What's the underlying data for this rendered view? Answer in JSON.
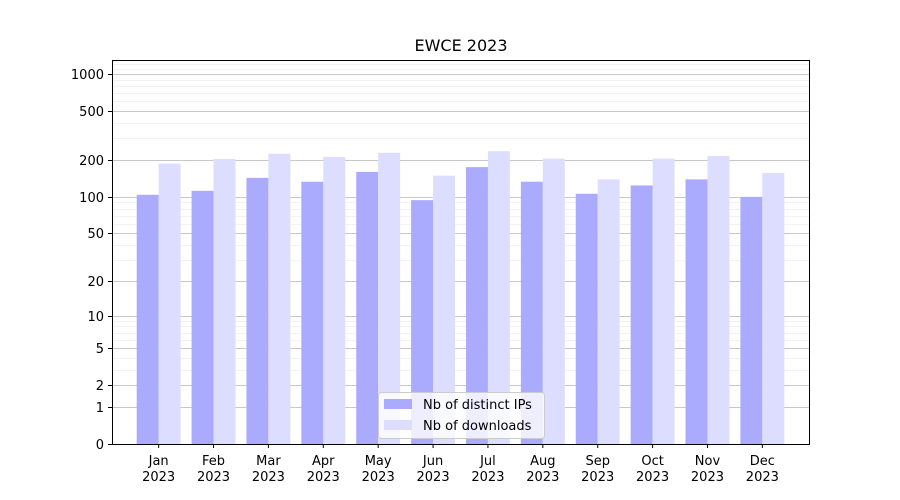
{
  "chart_data": {
    "type": "bar",
    "title": "EWCE 2023",
    "xlabel": "",
    "ylabel": "",
    "y_scale": "symlog",
    "ylim": [
      0,
      1300
    ],
    "y_ticks": [
      0,
      1,
      2,
      5,
      10,
      20,
      50,
      100,
      200,
      500,
      1000
    ],
    "y_tick_labels": [
      "0",
      "1",
      "2",
      "5",
      "10",
      "20",
      "50",
      "100",
      "200",
      "500",
      "1000"
    ],
    "grid": true,
    "legend_position": "bottom-center",
    "categories": [
      {
        "month": "Jan",
        "year": "2023"
      },
      {
        "month": "Feb",
        "year": "2023"
      },
      {
        "month": "Mar",
        "year": "2023"
      },
      {
        "month": "Apr",
        "year": "2023"
      },
      {
        "month": "May",
        "year": "2023"
      },
      {
        "month": "Jun",
        "year": "2023"
      },
      {
        "month": "Jul",
        "year": "2023"
      },
      {
        "month": "Aug",
        "year": "2023"
      },
      {
        "month": "Sep",
        "year": "2023"
      },
      {
        "month": "Oct",
        "year": "2023"
      },
      {
        "month": "Nov",
        "year": "2023"
      },
      {
        "month": "Dec",
        "year": "2023"
      }
    ],
    "series": [
      {
        "name": "Nb of distinct IPs",
        "color": "#aaaaff",
        "values": [
          104,
          112,
          143,
          133,
          160,
          94,
          175,
          133,
          106,
          124,
          139,
          100
        ]
      },
      {
        "name": "Nb of downloads",
        "color": "#ddddff",
        "values": [
          187,
          204,
          225,
          212,
          229,
          149,
          236,
          205,
          139,
          205,
          216,
          157
        ]
      }
    ]
  }
}
